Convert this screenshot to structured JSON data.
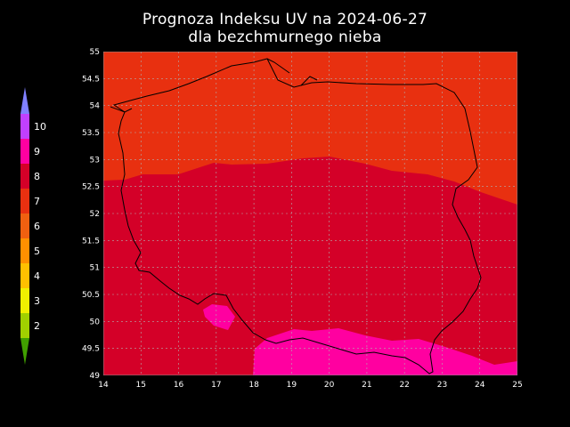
{
  "title": {
    "line1": "Prognoza Indeksu UV na 2024-06-27",
    "line2": "dla bezchmurnego nieba"
  },
  "map": {
    "lon_range": [
      14,
      25
    ],
    "lat_range": [
      49,
      55
    ],
    "lon_ticks": [
      "14",
      "15",
      "16",
      "17",
      "18",
      "19",
      "20",
      "21",
      "22",
      "23",
      "24",
      "25"
    ],
    "lat_ticks": [
      "55",
      "54.5",
      "54",
      "53.5",
      "53",
      "52.5",
      "52",
      "51.5",
      "51",
      "50.5",
      "50",
      "49.5",
      "49"
    ],
    "grid": true,
    "zones": [
      {
        "uv_index": 7,
        "color": "#e83010"
      },
      {
        "uv_index": 8,
        "color": "#d40028"
      },
      {
        "uv_index": 9,
        "color": "#ff00a0"
      }
    ]
  },
  "legend": {
    "placement": "left",
    "labels": [
      "10",
      "9",
      "8",
      "7",
      "6",
      "5",
      "4",
      "3",
      "2"
    ],
    "colors": [
      "#8080ff",
      "#c040ff",
      "#ff00a0",
      "#d40028",
      "#e83010",
      "#f06010",
      "#ff9000",
      "#ffc000",
      "#f0f000",
      "#a0d000",
      "#40a000"
    ]
  }
}
